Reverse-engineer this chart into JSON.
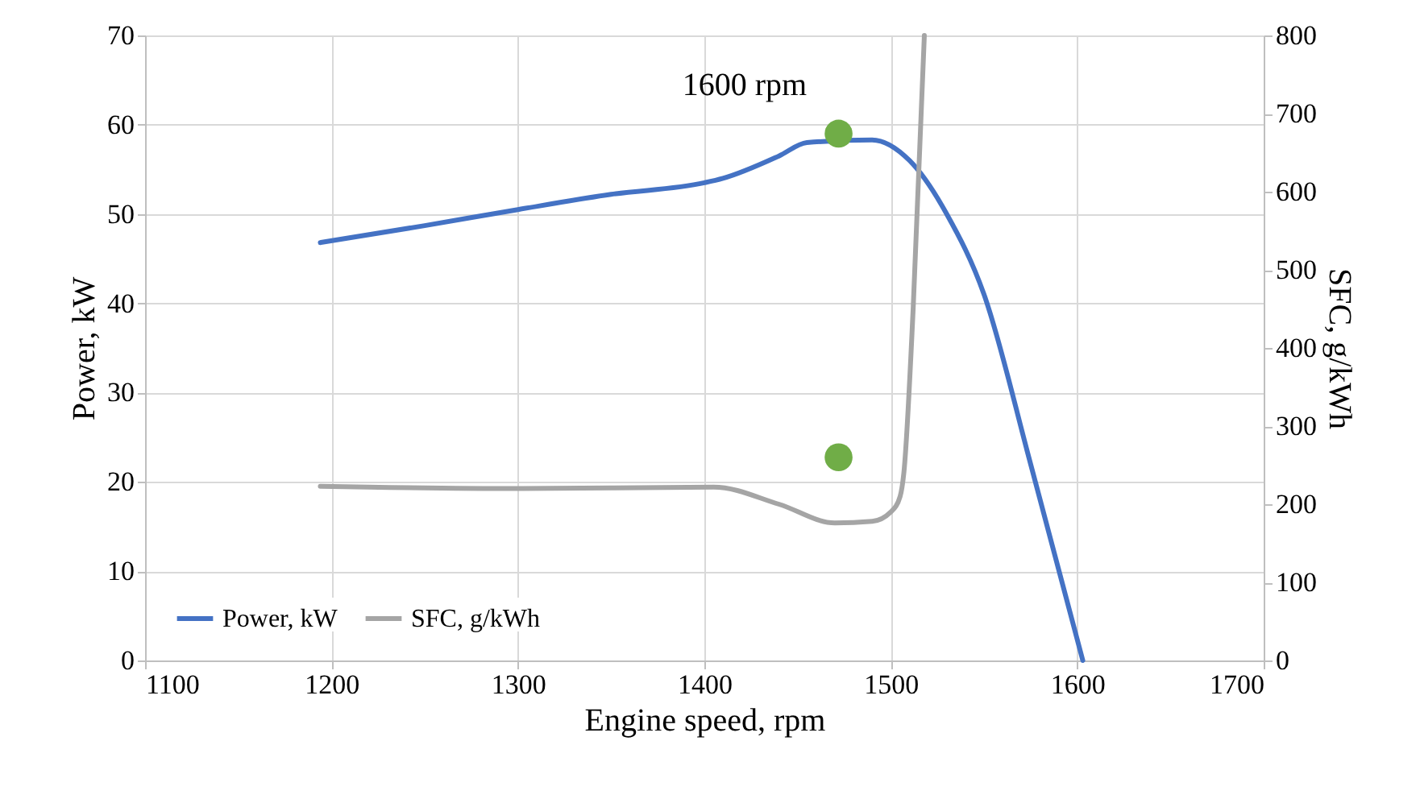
{
  "chart_data": {
    "type": "line",
    "xlabel": "Engine speed, rpm",
    "ylabel": "Power, kW",
    "y2label": "SFC, g/kWh",
    "xlim": [
      1100,
      1700
    ],
    "xticks": [
      1100,
      1200,
      1300,
      1400,
      1500,
      1600,
      1700
    ],
    "ylim": [
      0,
      70
    ],
    "yticks": [
      0,
      10,
      20,
      30,
      40,
      50,
      60,
      70
    ],
    "y2lim": [
      0,
      800
    ],
    "y2ticks": [
      0,
      100,
      200,
      300,
      400,
      500,
      600,
      700,
      800
    ],
    "grid": true,
    "legend": "bottom left",
    "line_style": "solid",
    "series": [
      {
        "name": "Power, kW",
        "color": "#4472c4",
        "x": [
          1194,
          1250,
          1300,
          1350,
          1400,
          1410,
          1440,
          1455,
          1490,
          1510,
          1530,
          1550,
          1575,
          1603
        ],
        "values": [
          46.8,
          48.7,
          50.5,
          52.2,
          53.5,
          54,
          56.5,
          58,
          58.3,
          56,
          50,
          41,
          22,
          0
        ]
      },
      {
        "name": "SFC, g/kWh",
        "color": "#a5a5a5",
        "axis": "y2",
        "x": [
          1194,
          1300,
          1405,
          1440,
          1470,
          1490,
          1500,
          1505,
          1507,
          1512,
          1518
        ],
        "values": [
          223,
          220,
          222,
          200,
          176,
          178,
          190,
          210,
          240,
          450,
          800
        ]
      },
      {
        "type": "scatter",
        "marker": "circle",
        "color": "#70ad47",
        "x": [
          1472
        ],
        "values": [
          59
        ]
      },
      {
        "type": "scatter",
        "marker": "circle",
        "color": "#70ad47",
        "axis": "y2",
        "x": [
          1472
        ],
        "values": [
          260
        ]
      }
    ],
    "annotations": [
      "1600 rpm"
    ]
  }
}
